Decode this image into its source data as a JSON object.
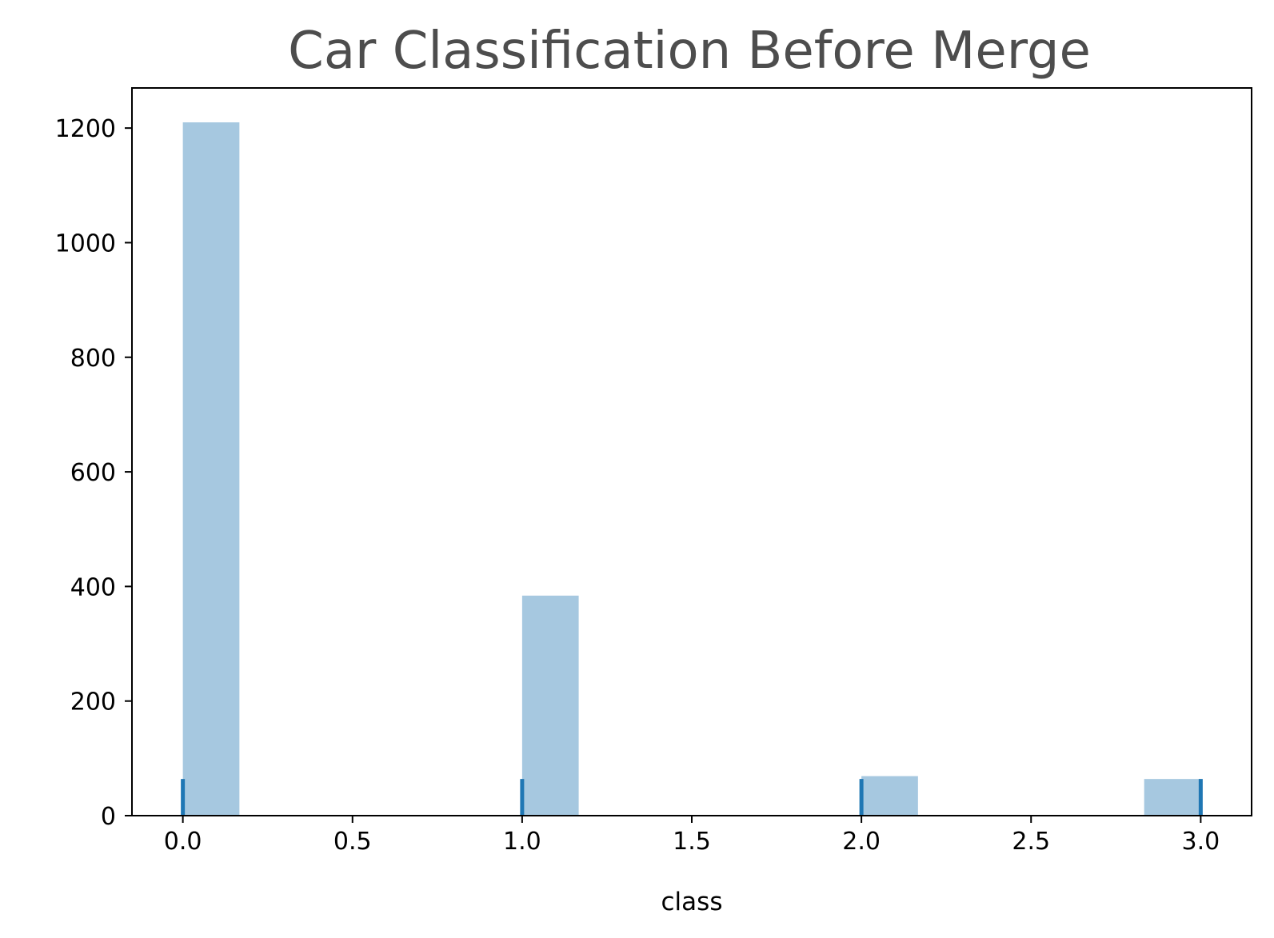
{
  "chart_data": {
    "type": "bar",
    "title": "Car Classification Before Merge",
    "xlabel": "class",
    "ylabel": "",
    "xlim": [
      -0.15,
      3.15
    ],
    "ylim": [
      0,
      1270
    ],
    "x_ticks": [
      0.0,
      0.5,
      1.0,
      1.5,
      2.0,
      2.5,
      3.0
    ],
    "x_tick_labels": [
      "0.0",
      "0.5",
      "1.0",
      "1.5",
      "2.0",
      "2.5",
      "3.0"
    ],
    "y_ticks": [
      0,
      200,
      400,
      600,
      800,
      1000,
      1200
    ],
    "y_tick_labels": [
      "0",
      "200",
      "400",
      "600",
      "800",
      "1000",
      "1200"
    ],
    "bin_width": 0.1667,
    "bins": [
      {
        "x_start": 0.0,
        "value": 1210
      },
      {
        "x_start": 1.0,
        "value": 384
      },
      {
        "x_start": 2.0,
        "value": 69
      },
      {
        "x_start": 2.8333,
        "value": 64
      }
    ],
    "rug": [
      0,
      1,
      2,
      3
    ],
    "grid": false,
    "colors": {
      "bar": "#a6c8e0",
      "rug": "#1f77b4",
      "title": "#4d4d4d",
      "axis": "#000000"
    }
  }
}
